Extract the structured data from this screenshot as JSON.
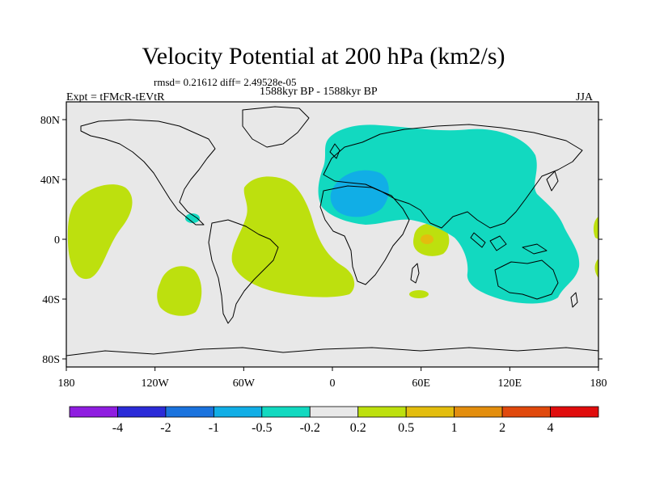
{
  "header": {
    "title": "Velocity Potential at 200 hPa (km2/s)",
    "stats": "rmsd= 0.21612 diff= 2.49528e-05",
    "experiment": "Expt = tFMcR-tEVtR",
    "period": "1588kyr BP - 1588kyr BP",
    "season": "JJA"
  },
  "map": {
    "lat_ticks": [
      "80N",
      "40N",
      "0",
      "40S",
      "80S"
    ],
    "lon_ticks": [
      "180",
      "120W",
      "60W",
      "0",
      "60E",
      "120E",
      "180"
    ],
    "ocean_color": "#e8e8e8",
    "coast_color": "#000000"
  },
  "colorbar": {
    "colors": [
      "#8f1de0",
      "#2b2bd8",
      "#1a73de",
      "#11aee6",
      "#12d9c0",
      "#e8e8e8",
      "#bde00e",
      "#e3bd0e",
      "#e38e0e",
      "#e0490d",
      "#e00d0d"
    ],
    "labels": [
      "-4",
      "-2",
      "-1",
      "-0.5",
      "-0.2",
      "0.2",
      "0.5",
      "1",
      "2",
      "4"
    ]
  }
}
